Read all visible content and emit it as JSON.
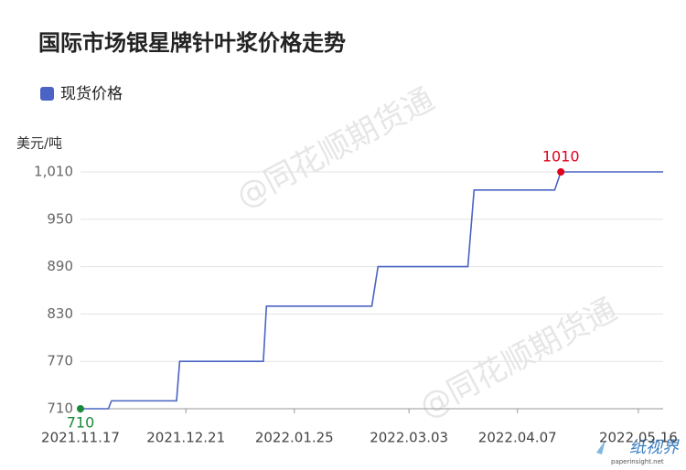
{
  "chart_data": {
    "type": "line",
    "title": "国际市场银星牌针叶浆价格走势",
    "y_axis_label": "美元/吨",
    "watermark": "@同花顺期货通",
    "logo": {
      "text": "纸视界",
      "url": "paperinsight.net"
    },
    "x": [
      "2021.11.17",
      "2021.11.26",
      "2021.11.27",
      "2021.12.18",
      "2021.12.19",
      "2022.01.15",
      "2022.01.16",
      "2022.02.19",
      "2022.02.21",
      "2022.03.22",
      "2022.03.24",
      "2022.04.19",
      "2022.04.21",
      "2022.05.24"
    ],
    "series": [
      {
        "name": "现货价格",
        "color": "#4a63c4",
        "values": [
          710,
          710,
          720,
          720,
          770,
          770,
          840,
          840,
          890,
          890,
          987,
          987,
          1010,
          1010
        ]
      }
    ],
    "min_color": "#1a8a3a",
    "max_color": "#e0001b",
    "xlim": [
      "2021.11.17",
      "2022.05.24"
    ],
    "xticks": [
      "2021.11.17",
      "2021.12.21",
      "2022.01.25",
      "2022.03.03",
      "2022.04.07",
      "2022.05.16"
    ],
    "ylim": [
      710,
      1010
    ],
    "yticks": [
      710,
      770,
      830,
      890,
      950,
      {
        "value": 1010,
        "label": "1,010"
      }
    ],
    "grid": true
  }
}
